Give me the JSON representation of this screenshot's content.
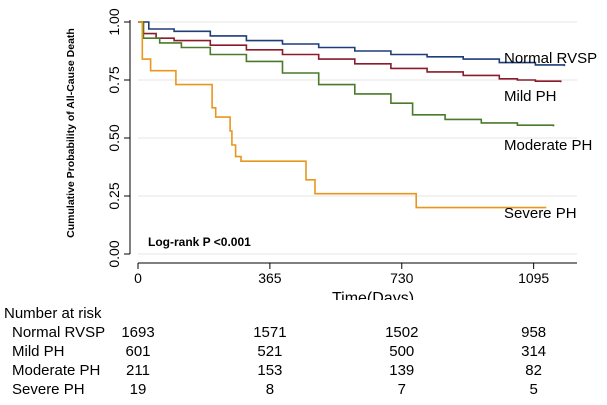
{
  "chart_data": {
    "type": "line",
    "subtype": "kaplan-meier step curves",
    "title": "",
    "ylabel": "Cumulative Probability of All-Cause Death",
    "xlabel": "Time(Days)",
    "xlim": [
      0,
      1215
    ],
    "ylim": [
      0,
      1.0
    ],
    "x_ticks": [
      0,
      365,
      730,
      1095
    ],
    "x_tick_labels": [
      "0",
      "365",
      "730",
      "1095"
    ],
    "y_ticks": [
      0,
      0.25,
      0.5,
      0.75,
      1.0
    ],
    "y_tick_labels": [
      "0.00",
      "0.25",
      "0.50",
      "0.75",
      "1.00"
    ],
    "annotation": "Log-rank P <0.001",
    "series": [
      {
        "name": "Normal RVSP",
        "color": "#1f3d7a",
        "points": [
          [
            0,
            1.0
          ],
          [
            30,
            0.97
          ],
          [
            100,
            0.96
          ],
          [
            200,
            0.94
          ],
          [
            300,
            0.92
          ],
          [
            400,
            0.905
          ],
          [
            500,
            0.89
          ],
          [
            600,
            0.875
          ],
          [
            700,
            0.86
          ],
          [
            800,
            0.85
          ],
          [
            900,
            0.84
          ],
          [
            1000,
            0.825
          ],
          [
            1100,
            0.815
          ],
          [
            1180,
            0.81
          ]
        ]
      },
      {
        "name": "Mild PH",
        "color": "#8b1a2b",
        "points": [
          [
            0,
            1.0
          ],
          [
            15,
            0.95
          ],
          [
            50,
            0.93
          ],
          [
            100,
            0.92
          ],
          [
            200,
            0.9
          ],
          [
            300,
            0.88
          ],
          [
            400,
            0.86
          ],
          [
            500,
            0.84
          ],
          [
            600,
            0.82
          ],
          [
            700,
            0.8
          ],
          [
            800,
            0.785
          ],
          [
            900,
            0.77
          ],
          [
            1000,
            0.755
          ],
          [
            1050,
            0.75
          ],
          [
            1100,
            0.745
          ],
          [
            1170,
            0.74
          ]
        ]
      },
      {
        "name": "Moderate PH",
        "color": "#4a7a2a",
        "points": [
          [
            0,
            1.0
          ],
          [
            15,
            0.93
          ],
          [
            60,
            0.91
          ],
          [
            120,
            0.89
          ],
          [
            200,
            0.86
          ],
          [
            300,
            0.83
          ],
          [
            400,
            0.78
          ],
          [
            500,
            0.73
          ],
          [
            600,
            0.69
          ],
          [
            700,
            0.65
          ],
          [
            760,
            0.6
          ],
          [
            850,
            0.58
          ],
          [
            950,
            0.565
          ],
          [
            1050,
            0.555
          ],
          [
            1150,
            0.55
          ]
        ]
      },
      {
        "name": "Severe PH",
        "color": "#e8961e",
        "points": [
          [
            0,
            1.0
          ],
          [
            12,
            0.84
          ],
          [
            35,
            0.79
          ],
          [
            105,
            0.73
          ],
          [
            205,
            0.63
          ],
          [
            215,
            0.59
          ],
          [
            255,
            0.53
          ],
          [
            260,
            0.47
          ],
          [
            270,
            0.42
          ],
          [
            285,
            0.4
          ],
          [
            465,
            0.32
          ],
          [
            490,
            0.26
          ],
          [
            770,
            0.2
          ],
          [
            1130,
            0.2
          ]
        ]
      }
    ]
  },
  "risk_table": {
    "title": "Number at risk",
    "rows": [
      {
        "label": "Normal RVSP",
        "values": [
          "1693",
          "1571",
          "1502",
          "958"
        ]
      },
      {
        "label": "Mild PH",
        "values": [
          "601",
          "521",
          "500",
          "314"
        ]
      },
      {
        "label": "Moderate PH",
        "values": [
          "211",
          "153",
          "139",
          "82"
        ]
      },
      {
        "label": "Severe PH",
        "values": [
          "19",
          "8",
          "7",
          "5"
        ]
      }
    ]
  }
}
